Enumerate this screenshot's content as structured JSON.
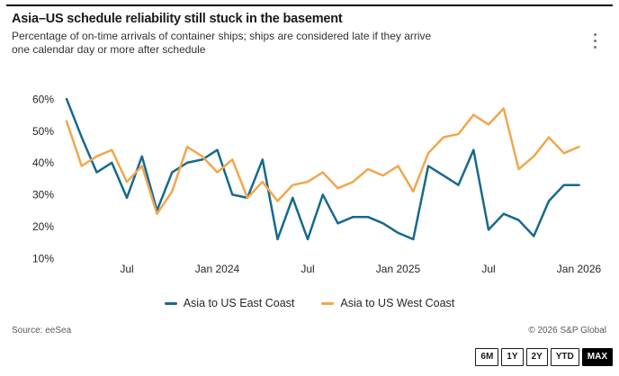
{
  "header": {
    "title": "Asia–US schedule reliability still stuck in the basement",
    "subtitle": "Percentage of on-time arrivals of container ships; ships are considered late if they arrive one calendar day or more after schedule"
  },
  "chart_data": {
    "type": "line",
    "title": "Asia–US schedule reliability still stuck in the basement",
    "x": [
      "Mar 2023",
      "Apr 2023",
      "May 2023",
      "Jun 2023",
      "Jul 2023",
      "Aug 2023",
      "Sep 2023",
      "Oct 2023",
      "Nov 2023",
      "Dec 2023",
      "Jan 2024",
      "Feb 2024",
      "Mar 2024",
      "Apr 2024",
      "May 2024",
      "Jun 2024",
      "Jul 2024",
      "Aug 2024",
      "Sep 2024",
      "Oct 2024",
      "Nov 2024",
      "Dec 2024",
      "Jan 2025",
      "Feb 2025",
      "Mar 2025",
      "Apr 2025",
      "May 2025",
      "Jun 2025",
      "Jul 2025",
      "Aug 2025",
      "Sep 2025",
      "Oct 2025",
      "Nov 2025",
      "Dec 2025",
      "Jan 2026"
    ],
    "series": [
      {
        "name": "Asia to US East Coast",
        "color": "#17698c",
        "values": [
          60,
          48,
          37,
          40,
          29,
          42,
          25,
          37,
          40,
          41,
          44,
          30,
          29,
          41,
          16,
          29,
          16,
          30,
          21,
          23,
          23,
          21,
          18,
          16,
          39,
          36,
          33,
          44,
          19,
          24,
          22,
          17,
          28,
          33,
          33
        ]
      },
      {
        "name": "Asia to US West Coast",
        "color": "#f2a64d",
        "values": [
          53,
          39,
          42,
          44,
          34,
          39,
          24,
          31,
          45,
          42,
          37,
          41,
          29,
          34,
          28,
          33,
          34,
          37,
          32,
          34,
          38,
          36,
          39,
          31,
          43,
          48,
          49,
          55,
          52,
          57,
          38,
          42,
          48,
          43,
          45
        ]
      }
    ],
    "yticks": [
      10,
      20,
      30,
      40,
      50,
      60
    ],
    "ytick_suffix": "%",
    "ylim": [
      10,
      60
    ],
    "xticks": [
      {
        "index": 4,
        "label": "Jul"
      },
      {
        "index": 10,
        "label": "Jan 2024"
      },
      {
        "index": 16,
        "label": "Jul"
      },
      {
        "index": 22,
        "label": "Jan 2025"
      },
      {
        "index": 28,
        "label": "Jul"
      },
      {
        "index": 34,
        "label": "Jan 2026"
      }
    ],
    "grid": false,
    "legend_position": "bottom"
  },
  "footer": {
    "source": "Source: eeSea",
    "copyright": "© 2026 S&P Global"
  },
  "range_buttons": [
    {
      "label": "6M",
      "active": false
    },
    {
      "label": "1Y",
      "active": false
    },
    {
      "label": "2Y",
      "active": false
    },
    {
      "label": "YTD",
      "active": false
    },
    {
      "label": "MAX",
      "active": true
    }
  ],
  "icons": {
    "menu": "kebab-menu-icon"
  }
}
